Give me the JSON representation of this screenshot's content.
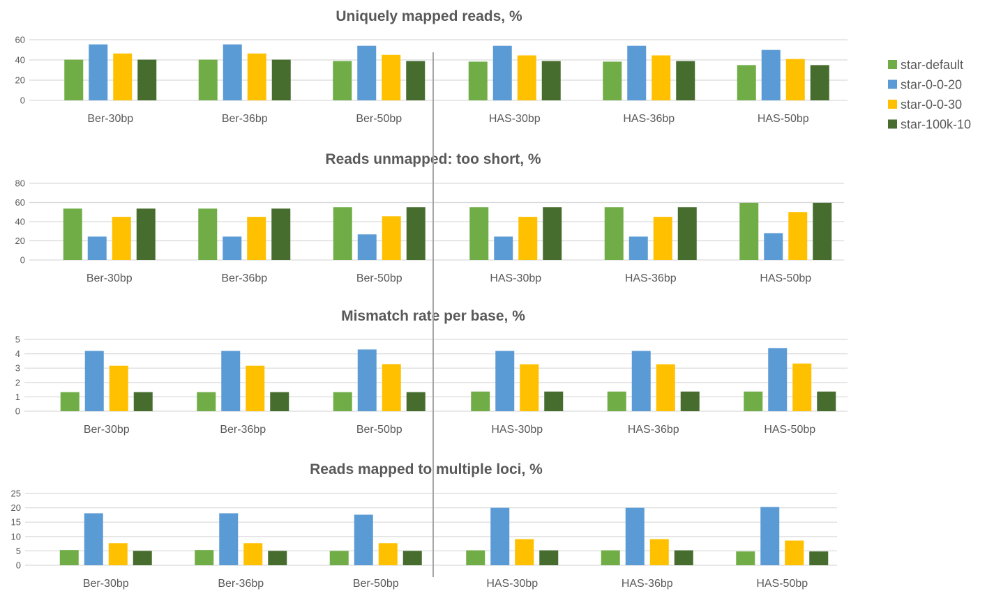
{
  "legend": {
    "position": "right",
    "items": [
      {
        "name": "star-default",
        "color": "#70ad47"
      },
      {
        "name": "star-0-0-20",
        "color": "#5b9bd5"
      },
      {
        "name": "star-0-0-30",
        "color": "#ffc000"
      },
      {
        "name": "star-100k-10",
        "color": "#466d2e"
      }
    ]
  },
  "chart_data": [
    {
      "type": "bar",
      "title": "Uniquely mapped reads, %",
      "xlabel": "",
      "ylabel": "",
      "categories": [
        "Ber-30bp",
        "Ber-36bp",
        "Ber-50bp",
        "HAS-30bp",
        "HAS-36bp",
        "HAS-50bp"
      ],
      "ylim": [
        0,
        60
      ],
      "yticks": [
        0,
        20,
        40,
        60
      ],
      "grid": true,
      "series": [
        {
          "name": "star-default",
          "values": [
            40.3,
            40.3,
            38.9,
            38.3,
            38.3,
            34.9
          ]
        },
        {
          "name": "star-0-0-20",
          "values": [
            55.4,
            55.4,
            54.0,
            54.0,
            54.0,
            49.9
          ]
        },
        {
          "name": "star-0-0-30",
          "values": [
            46.4,
            46.4,
            45.0,
            44.5,
            44.5,
            40.9
          ]
        },
        {
          "name": "star-100k-10",
          "values": [
            40.3,
            40.3,
            38.9,
            38.9,
            38.9,
            34.9
          ]
        }
      ]
    },
    {
      "type": "bar",
      "title": "Reads unmapped: too short, %",
      "xlabel": "",
      "ylabel": "",
      "categories": [
        "Ber-30bp",
        "Ber-36bp",
        "Ber-50bp",
        "HAS-30bp",
        "HAS-36bp",
        "HAS-50bp"
      ],
      "ylim": [
        0,
        80
      ],
      "yticks": [
        0,
        20,
        40,
        60,
        80
      ],
      "grid": true,
      "series": [
        {
          "name": "star-default",
          "values": [
            53.6,
            53.6,
            55.1,
            55.1,
            55.1,
            59.7
          ]
        },
        {
          "name": "star-0-0-20",
          "values": [
            24.4,
            24.4,
            26.7,
            24.4,
            24.4,
            28.0
          ]
        },
        {
          "name": "star-0-0-30",
          "values": [
            45.0,
            45.0,
            45.6,
            45.0,
            45.0,
            50.0
          ]
        },
        {
          "name": "star-100k-10",
          "values": [
            53.6,
            53.6,
            55.1,
            55.1,
            55.1,
            59.7
          ]
        }
      ]
    },
    {
      "type": "bar",
      "title": "Mismatch rate per base, %",
      "xlabel": "",
      "ylabel": "",
      "categories": [
        "Ber-30bp",
        "Ber-36bp",
        "Ber-50bp",
        "HAS-30bp",
        "HAS-36bp",
        "HAS-50bp"
      ],
      "ylim": [
        0,
        5
      ],
      "yticks": [
        0,
        1,
        2,
        3,
        4,
        5
      ],
      "grid": true,
      "series": [
        {
          "name": "star-default",
          "values": [
            1.33,
            1.33,
            1.33,
            1.37,
            1.37,
            1.37
          ]
        },
        {
          "name": "star-0-0-20",
          "values": [
            4.2,
            4.2,
            4.3,
            4.2,
            4.2,
            4.4
          ]
        },
        {
          "name": "star-0-0-30",
          "values": [
            3.17,
            3.17,
            3.28,
            3.27,
            3.27,
            3.32
          ]
        },
        {
          "name": "star-100k-10",
          "values": [
            1.33,
            1.33,
            1.33,
            1.37,
            1.37,
            1.37
          ]
        }
      ]
    },
    {
      "type": "bar",
      "title": "Reads mapped to multiple loci, %",
      "xlabel": "",
      "ylabel": "",
      "categories": [
        "Ber-30bp",
        "Ber-36bp",
        "Ber-50bp",
        "HAS-30bp",
        "HAS-36bp",
        "HAS-50bp"
      ],
      "ylim": [
        0,
        25
      ],
      "yticks": [
        0,
        5,
        10,
        15,
        20,
        25
      ],
      "grid": true,
      "series": [
        {
          "name": "star-default",
          "values": [
            5.3,
            5.3,
            5.0,
            5.2,
            5.2,
            4.8
          ]
        },
        {
          "name": "star-0-0-20",
          "values": [
            18.1,
            18.1,
            17.6,
            20.0,
            20.0,
            20.3
          ]
        },
        {
          "name": "star-0-0-30",
          "values": [
            7.7,
            7.7,
            7.7,
            9.1,
            9.1,
            8.6
          ]
        },
        {
          "name": "star-100k-10",
          "values": [
            5.0,
            5.0,
            5.0,
            5.2,
            5.2,
            4.8
          ]
        }
      ]
    }
  ]
}
